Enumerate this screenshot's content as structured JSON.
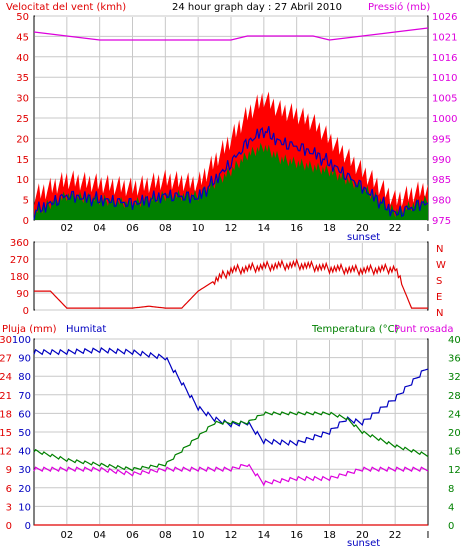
{
  "colors": {
    "wind": "#e00000",
    "pressure": "#dd00dd",
    "gust_fill": "#ff0000",
    "avg_fill": "#008000",
    "wind_line": "#0000c0",
    "direction": "#e00000",
    "humidity": "#0000c0",
    "temperature": "#008000",
    "dewpoint": "#dd00dd",
    "rain": "#e00000",
    "grid": "#c8c8c8",
    "axis": "#000000"
  },
  "header": {
    "wind_label": "Velocitat del vent (kmh)",
    "title": "24 hour graph day : 27 Abril 2010",
    "pressure_label": "Pressió (mb)"
  },
  "x_ticks": [
    "02",
    "04",
    "06",
    "08",
    "10",
    "12",
    "14",
    "16",
    "18",
    "20",
    "22",
    "I"
  ],
  "sunset_label": "sunset",
  "chart_data": [
    {
      "type": "line",
      "title": "24 hour graph day : 27 Abril 2010",
      "left_axis": {
        "label": "Velocitat del vent (kmh)",
        "ticks": [
          0,
          5,
          10,
          15,
          20,
          25,
          30,
          35,
          40,
          45,
          50
        ],
        "ylim": [
          0,
          50
        ]
      },
      "right_axis": {
        "label": "Pressió (mb)",
        "ticks": [
          975,
          980,
          985,
          990,
          995,
          1000,
          1005,
          1010,
          1016,
          1021,
          1026
        ],
        "ylim": [
          975,
          1026
        ]
      },
      "x_hours": [
        0,
        2,
        4,
        6,
        8,
        10,
        12,
        13,
        14,
        15,
        16,
        17,
        18,
        20,
        22,
        24
      ],
      "series": [
        {
          "role": "gust",
          "values": [
            6,
            10,
            9,
            8,
            10,
            9,
            20,
            26,
            30,
            27,
            26,
            24,
            20,
            12,
            5,
            8
          ]
        },
        {
          "role": "average",
          "values": [
            2,
            6,
            5,
            4,
            6,
            6,
            12,
            16,
            18,
            15,
            14,
            13,
            12,
            8,
            2,
            5
          ]
        },
        {
          "role": "pressure",
          "axis": "right",
          "values": [
            1022,
            1021,
            1020,
            1020,
            1020,
            1020,
            1020,
            1021,
            1021,
            1021,
            1021,
            1021,
            1020,
            1021,
            1022,
            1023
          ]
        }
      ]
    },
    {
      "type": "line",
      "left_axis": {
        "ticks": [
          0,
          90,
          180,
          270,
          360
        ],
        "ylim": [
          0,
          360
        ]
      },
      "right_axis": {
        "ticks": [
          "N",
          "W",
          "S",
          "E",
          "N"
        ]
      },
      "x_hours": [
        0,
        1,
        2,
        4,
        6,
        7,
        8,
        9,
        10,
        12,
        14,
        16,
        18,
        20,
        22,
        23,
        24
      ],
      "series": [
        {
          "role": "direction",
          "values": [
            100,
            100,
            10,
            10,
            10,
            20,
            10,
            10,
            100,
            210,
            230,
            240,
            220,
            210,
            220,
            10,
            10
          ]
        }
      ]
    },
    {
      "type": "line",
      "header_left": "Pluja (mm)",
      "header_humidity": "Humitat",
      "header_right": "Temperatura (°C)",
      "header_dew": "Punt rosada",
      "left_axis_rain": {
        "ticks": [
          0,
          3,
          6,
          9,
          12,
          15,
          18,
          21,
          24,
          27,
          30
        ],
        "ylim": [
          0,
          30
        ]
      },
      "left_axis_humidity": {
        "ticks": [
          0,
          10,
          20,
          30,
          40,
          50,
          60,
          70,
          80,
          90,
          100
        ],
        "ylim": [
          0,
          100
        ]
      },
      "right_axis": {
        "ticks": [
          0,
          4,
          8,
          12,
          16,
          20,
          24,
          28,
          32,
          36,
          40
        ],
        "ylim": [
          0,
          40
        ]
      },
      "x_hours": [
        0,
        2,
        4,
        6,
        8,
        10,
        11,
        12,
        13,
        14,
        16,
        18,
        19,
        20,
        22,
        24
      ],
      "series": [
        {
          "role": "humidity",
          "values": [
            93,
            93,
            94,
            93,
            90,
            63,
            57,
            54,
            55,
            45,
            44,
            50,
            57,
            55,
            68,
            85
          ]
        },
        {
          "role": "temperature",
          "values": [
            16,
            14,
            13,
            12,
            13,
            19,
            22,
            22,
            22,
            24,
            24,
            24,
            23,
            20,
            17,
            15
          ]
        },
        {
          "role": "dewpoint",
          "values": [
            12,
            12,
            12,
            11,
            12,
            12,
            12,
            12,
            13,
            9,
            10,
            10,
            11,
            12,
            12,
            12
          ]
        },
        {
          "role": "rain",
          "values": [
            0,
            0,
            0,
            0,
            0,
            0,
            0,
            0,
            0,
            0,
            0,
            0,
            0,
            0,
            0,
            0
          ]
        }
      ]
    }
  ]
}
